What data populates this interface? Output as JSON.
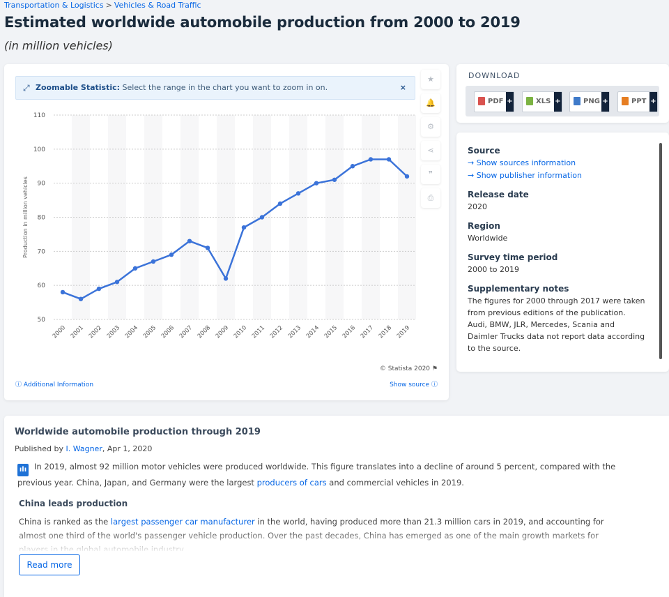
{
  "breadcrumb": {
    "items": [
      "Transportation & Logistics",
      "Vehicles & Road Traffic"
    ],
    "separator": ">"
  },
  "title": "Estimated worldwide automobile production from 2000 to 2019",
  "subtitle": "(in million vehicles)",
  "zoom_notice": {
    "bold": "Zoomable Statistic:",
    "text": "Select the range in the chart you want to zoom in on.",
    "close": "×"
  },
  "tools": [
    {
      "icon": "star-icon",
      "glyph": "★"
    },
    {
      "icon": "bell-icon",
      "glyph": "🔔"
    },
    {
      "icon": "gear-icon",
      "glyph": "⚙"
    },
    {
      "icon": "share-icon",
      "glyph": "⋖"
    },
    {
      "icon": "quote-icon",
      "glyph": "❞"
    },
    {
      "icon": "print-icon",
      "glyph": "⎙"
    }
  ],
  "chart_footer": {
    "copyright": "© Statista 2020",
    "additional_info": "Additional Information",
    "show_source": "Show source"
  },
  "chart_data": {
    "type": "line",
    "title": "",
    "xlabel": "",
    "ylabel": "Production in million vehicles",
    "categories": [
      "2000",
      "2001",
      "2002",
      "2003",
      "2004",
      "2005",
      "2006",
      "2007",
      "2008",
      "2009",
      "2010",
      "2011",
      "2012",
      "2013",
      "2014",
      "2015",
      "2016",
      "2017",
      "2018",
      "2019"
    ],
    "values": [
      58,
      56,
      59,
      61,
      65,
      67,
      69,
      73,
      71,
      62,
      77,
      80,
      84,
      87,
      90,
      91,
      95,
      97,
      97,
      92
    ],
    "ylim": [
      50,
      110
    ],
    "yticks": [
      50,
      60,
      70,
      80,
      90,
      100,
      110
    ],
    "grid": true,
    "color": "#3b73d9"
  },
  "download": {
    "title": "DOWNLOAD",
    "buttons": [
      {
        "label": "PDF",
        "color": "#d9534f"
      },
      {
        "label": "XLS",
        "color": "#7cb342"
      },
      {
        "label": "PNG",
        "color": "#3f7ac9"
      },
      {
        "label": "PPT",
        "color": "#e67e22"
      }
    ],
    "plus": "+"
  },
  "info": {
    "source_label": "Source",
    "show_sources": "→ Show sources information",
    "show_publisher": "→ Show publisher information",
    "release_label": "Release date",
    "release": "2020",
    "region_label": "Region",
    "region": "Worldwide",
    "period_label": "Survey time period",
    "period": "2000 to 2019",
    "notes_label": "Supplementary notes",
    "notes": "The figures for 2000 through 2017 were taken from previous editions of the publication. Audi, BMW, JLR, Mercedes, Scania and Daimler Trucks data not report data according to the source."
  },
  "article": {
    "title": "Worldwide automobile production through 2019",
    "published_prefix": "Published by ",
    "author": "I. Wagner",
    "date": ", Apr 1, 2020",
    "p1a": "In 2019, almost 92 million motor vehicles were produced worldwide. This figure translates into a decline of around 5 percent, compared with the previous year. China, Japan, and Germany were the largest ",
    "p1link": "producers of cars",
    "p1b": " and commercial vehicles in 2019.",
    "heading": "China leads production",
    "p2a": "China is ranked as the ",
    "p2link": "largest passenger car manufacturer",
    "p2b": " in the world, having produced more than 21.3 million cars in 2019, and accounting for almost one third of the world's passenger vehicle production. Over the past decades, China has emerged as one of the main growth markets for players in the global automobile industry.",
    "read_more": "Read more"
  }
}
